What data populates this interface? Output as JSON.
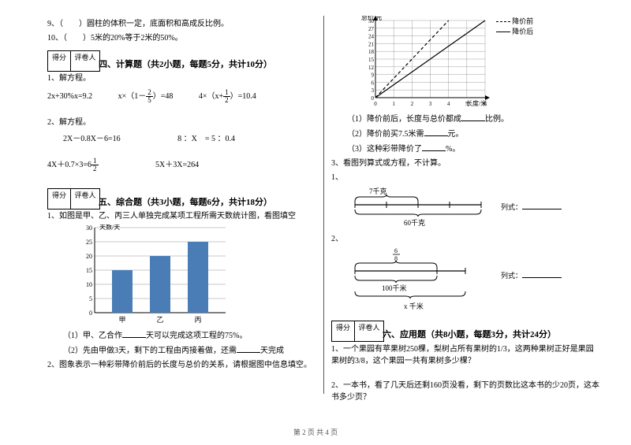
{
  "left": {
    "q9": "9、（　　）圆柱的体积一定，底面积和高成反比例。",
    "q10": "10、（　　）5米的20%等于2米的50%。",
    "score": {
      "a": "得分",
      "b": "评卷人"
    },
    "sec4_title": "四、计算题（共2小题，每题5分，共计10分）",
    "s4_1": "1、解方程。",
    "s4_1_eq1a": "2x+30%x=9.2",
    "s4_1_eq1b_pre": "x×（1－",
    "s4_1_eq1b_post": "）=48",
    "s4_1_eq1c_pre": "4×（x+",
    "s4_1_eq1c_post": "）=10.4",
    "s4_2": "2、解方程。",
    "s4_2_eq1": "2X－0.8X－6=16",
    "s4_2_eq2": "8 ：X　= 5 ：0.4",
    "s4_2_eq3_pre": "4X＋0.7×3=6",
    "s4_2_eq4": "5X＋3X=264",
    "sec5_title": "五、综合题（共3小题，每题6分，共计18分）",
    "s5_1": "1、如图是甲、乙、丙三人单独完成某项工程所需天数统计图，看图填空",
    "barChart": {
      "yTitle": "天数/天",
      "yTicks": [
        0,
        5,
        10,
        15,
        20,
        25,
        30
      ],
      "categories": [
        "甲",
        "乙",
        "丙"
      ],
      "values": [
        15,
        20,
        25
      ],
      "barColor": "#4a7db5",
      "gridColor": "#777",
      "axisColor": "#000"
    },
    "s5_1_1_pre": "（1）甲、乙合作",
    "s5_1_1_post": "天可以完成这项工程的75%。",
    "s5_1_2_pre": "（2）先由甲做3天，剩下的工程由丙接着做，还需",
    "s5_1_2_post": "天完成",
    "s5_2": "2、图象表示一种彩带降价前后的长度与总价的关系，请根据图中信息填空。"
  },
  "right": {
    "lineChart": {
      "yTitle": "总价/元",
      "xTitle": "长度/米",
      "legendBefore": "降价前",
      "legendAfter": "降价后",
      "yTicks": [
        0,
        3,
        6,
        9,
        12,
        15,
        18,
        21,
        24,
        27,
        30
      ],
      "xTicks": [
        0,
        1,
        2,
        3,
        4,
        5,
        6
      ],
      "beforePoints": [
        [
          0,
          0
        ],
        [
          1,
          7.5
        ],
        [
          2,
          15
        ],
        [
          3,
          22.5
        ],
        [
          4,
          30
        ]
      ],
      "afterPoints": [
        [
          0,
          0
        ],
        [
          1,
          5
        ],
        [
          2,
          10
        ],
        [
          3,
          15
        ],
        [
          4,
          20
        ],
        [
          5,
          25
        ],
        [
          6,
          30
        ]
      ],
      "gridColor": "#888",
      "axisColor": "#000"
    },
    "r_1_pre": "（1）降价前后，长度与总价都成",
    "r_1_post": "比例。",
    "r_2_pre": "（2）降价前买7.5米需",
    "r_2_post": "元。",
    "r_3_pre": "（3）这种彩带降价了",
    "r_3_post": "%。",
    "s5_3": "3、看图列算式或方程，不计算。",
    "s5_3_1": "1、",
    "dia1": {
      "top": "7千克",
      "bottom": "60千克",
      "formula": "列式："
    },
    "s5_3_2": "2、",
    "dia2": {
      "top_num": "6",
      "top_den": "8",
      "bottom": "100千米",
      "x": "x 千米",
      "formula": "列式："
    },
    "score": {
      "a": "得分",
      "b": "评卷人"
    },
    "sec6_title": "六、应用题（共8小题，每题3分，共计24分）",
    "s6_1": "1、一个果园有苹果树250棵，梨树占所有果树的1/3，这两种果树正好是果园果树的3/8，这个果园一共有果树多少棵？",
    "s6_2": "2、一本书，看了几天后还剩160页没看，剩下的页数比这本书的少20页，这本书多少页？"
  },
  "footer": "第 2 页 共 4 页"
}
